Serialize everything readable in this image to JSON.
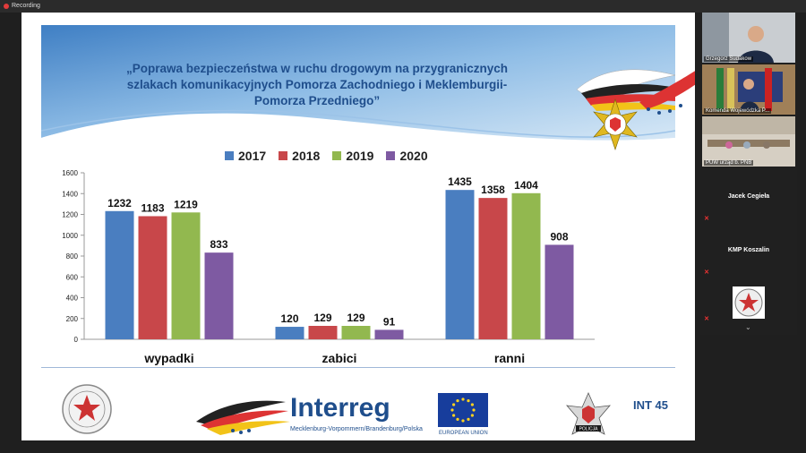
{
  "app": {
    "recording_label": "Recording"
  },
  "slide": {
    "title_lines": [
      "„Poprawa bezpieczeństwa w ruchu drogowym na przygranicznych",
      "szlakach komunikacyjnych Pomorza Zachodniego i Meklemburgii-",
      "Pomorza Przedniego”"
    ],
    "footer": {
      "interreg": "Interreg",
      "interreg_sub": "Mecklenburg-Vorpommern/Brandenburg/Polska",
      "eu_label": "EUROPEAN UNION",
      "int45": "INT 45",
      "polizei_badge": "POLICJA"
    }
  },
  "colors": {
    "2017": "#4a7ec0",
    "2018": "#c8474a",
    "2019": "#92b84f",
    "2020": "#7e5aa2"
  },
  "chart_data": {
    "type": "bar",
    "categories": [
      "wypadki",
      "zabici",
      "ranni"
    ],
    "series": [
      {
        "name": "2017",
        "values": [
          1232,
          120,
          1435
        ]
      },
      {
        "name": "2018",
        "values": [
          1183,
          129,
          1358
        ]
      },
      {
        "name": "2019",
        "values": [
          1219,
          129,
          1404
        ]
      },
      {
        "name": "2020",
        "values": [
          833,
          91,
          908
        ]
      }
    ],
    "yticks": [
      0,
      200,
      400,
      600,
      800,
      1000,
      1200,
      1400,
      1600
    ],
    "ylim": [
      0,
      1600
    ],
    "legend_position": "top"
  },
  "participants": [
    {
      "name": "Grzegorz Sudakow",
      "type": "video"
    },
    {
      "name": "Komenda Wojewódzka P...",
      "type": "video"
    },
    {
      "name": "PUW urząd b. PNB",
      "type": "video"
    },
    {
      "name": "Jacek Cegieła",
      "type": "name"
    },
    {
      "name": "KMP Koszalin",
      "type": "name"
    }
  ]
}
